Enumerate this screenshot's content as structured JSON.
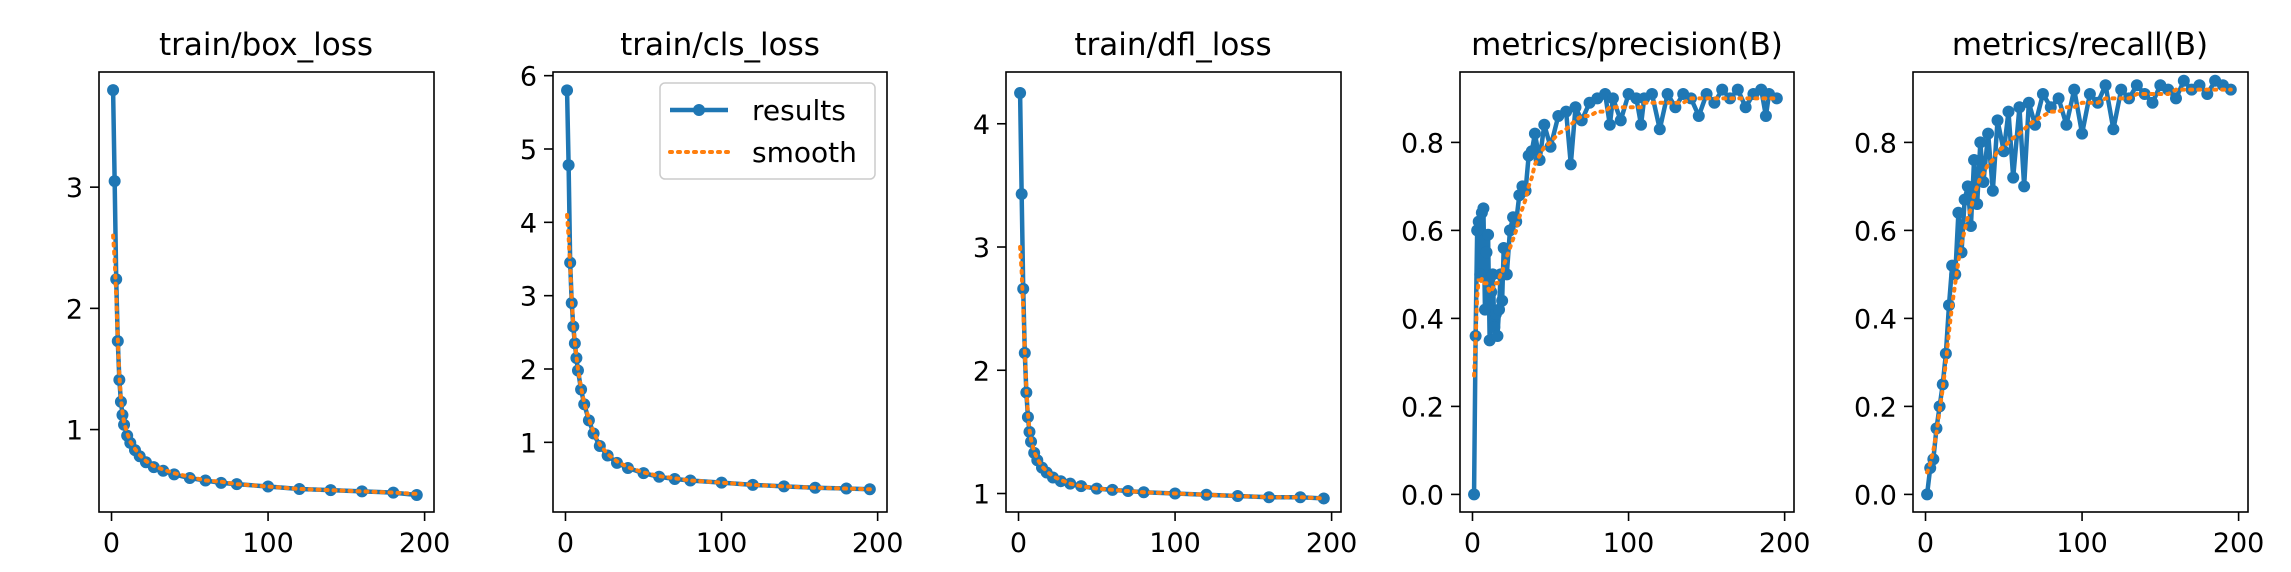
{
  "figure": {
    "titles": [
      "train/box_loss",
      "train/cls_loss",
      "train/dfl_loss",
      "metrics/precision(B)",
      "metrics/recall(B)"
    ]
  },
  "legend": {
    "results": "results",
    "smooth": "smooth"
  },
  "colors": {
    "results": "#1f77b4",
    "smooth": "#ff7f0e",
    "axes": "#000000",
    "background": "#ffffff"
  },
  "chart_data": [
    {
      "type": "line",
      "title": "train/box_loss",
      "xlabel": "",
      "ylabel": "",
      "xlim": [
        -8,
        206
      ],
      "ylim": [
        0.32,
        3.95
      ],
      "xticks": [
        0,
        100,
        200
      ],
      "yticks": [
        1,
        2,
        3
      ],
      "x": [
        1,
        2,
        3,
        4,
        5,
        6,
        7,
        8,
        10,
        12,
        15,
        18,
        22,
        27,
        33,
        40,
        50,
        60,
        70,
        80,
        100,
        120,
        140,
        160,
        180,
        195
      ],
      "series": [
        {
          "name": "results",
          "values": [
            3.8,
            3.05,
            2.24,
            1.73,
            1.41,
            1.23,
            1.12,
            1.04,
            0.95,
            0.89,
            0.83,
            0.78,
            0.73,
            0.69,
            0.66,
            0.63,
            0.6,
            0.58,
            0.56,
            0.55,
            0.53,
            0.51,
            0.5,
            0.49,
            0.48,
            0.46
          ]
        },
        {
          "name": "smooth",
          "values": [
            2.6,
            2.4,
            2.1,
            1.75,
            1.45,
            1.26,
            1.14,
            1.06,
            0.97,
            0.9,
            0.84,
            0.79,
            0.74,
            0.7,
            0.67,
            0.64,
            0.61,
            0.58,
            0.57,
            0.55,
            0.53,
            0.51,
            0.5,
            0.49,
            0.48,
            0.47
          ]
        }
      ]
    },
    {
      "type": "line",
      "title": "train/cls_loss",
      "xlabel": "",
      "ylabel": "",
      "xlim": [
        -8,
        206
      ],
      "ylim": [
        0.05,
        6.05
      ],
      "xticks": [
        0,
        100,
        200
      ],
      "yticks": [
        1,
        2,
        3,
        4,
        5,
        6
      ],
      "legend": "top-right",
      "x": [
        1,
        2,
        3,
        4,
        5,
        6,
        7,
        8,
        10,
        12,
        15,
        18,
        22,
        27,
        33,
        40,
        50,
        60,
        70,
        80,
        100,
        120,
        140,
        160,
        180,
        195
      ],
      "series": [
        {
          "name": "results",
          "values": [
            5.8,
            4.78,
            3.45,
            2.9,
            2.58,
            2.35,
            2.15,
            1.98,
            1.72,
            1.52,
            1.3,
            1.12,
            0.95,
            0.82,
            0.72,
            0.65,
            0.58,
            0.53,
            0.5,
            0.48,
            0.45,
            0.42,
            0.4,
            0.38,
            0.37,
            0.36
          ]
        },
        {
          "name": "smooth",
          "values": [
            4.1,
            3.8,
            3.4,
            2.95,
            2.6,
            2.37,
            2.17,
            2.0,
            1.74,
            1.54,
            1.32,
            1.14,
            0.97,
            0.84,
            0.74,
            0.66,
            0.59,
            0.54,
            0.51,
            0.48,
            0.45,
            0.42,
            0.4,
            0.38,
            0.37,
            0.36
          ]
        }
      ]
    },
    {
      "type": "line",
      "title": "train/dfl_loss",
      "xlabel": "",
      "ylabel": "",
      "xlim": [
        -8,
        206
      ],
      "ylim": [
        0.85,
        4.42
      ],
      "xticks": [
        0,
        100,
        200
      ],
      "yticks": [
        1,
        2,
        3,
        4
      ],
      "x": [
        1,
        2,
        3,
        4,
        5,
        6,
        7,
        8,
        10,
        12,
        15,
        18,
        22,
        27,
        33,
        40,
        50,
        60,
        70,
        80,
        100,
        120,
        140,
        160,
        180,
        195
      ],
      "series": [
        {
          "name": "results",
          "values": [
            4.25,
            3.43,
            2.66,
            2.14,
            1.82,
            1.62,
            1.5,
            1.42,
            1.33,
            1.27,
            1.21,
            1.17,
            1.13,
            1.1,
            1.08,
            1.06,
            1.04,
            1.03,
            1.02,
            1.01,
            1.0,
            0.99,
            0.98,
            0.97,
            0.97,
            0.96
          ]
        },
        {
          "name": "smooth",
          "values": [
            3.0,
            2.8,
            2.5,
            2.15,
            1.85,
            1.65,
            1.52,
            1.44,
            1.34,
            1.28,
            1.22,
            1.18,
            1.14,
            1.11,
            1.08,
            1.06,
            1.04,
            1.03,
            1.02,
            1.01,
            1.0,
            0.99,
            0.98,
            0.97,
            0.97,
            0.96
          ]
        }
      ]
    },
    {
      "type": "line",
      "title": "metrics/precision(B)",
      "xlabel": "",
      "ylabel": "",
      "xlim": [
        -8,
        206
      ],
      "ylim": [
        -0.04,
        0.96
      ],
      "xticks": [
        0,
        100,
        200
      ],
      "yticks": [
        0.0,
        0.2,
        0.4,
        0.6,
        0.8
      ],
      "x": [
        1,
        2,
        3,
        4,
        5,
        6,
        7,
        8,
        9,
        10,
        11,
        12,
        13,
        14,
        15,
        16,
        17,
        18,
        19,
        20,
        22,
        24,
        26,
        28,
        30,
        32,
        34,
        36,
        38,
        40,
        43,
        46,
        50,
        55,
        60,
        63,
        66,
        70,
        75,
        80,
        85,
        88,
        90,
        95,
        100,
        105,
        108,
        110,
        115,
        120,
        125,
        130,
        135,
        140,
        145,
        150,
        155,
        160,
        165,
        170,
        175,
        180,
        185,
        188,
        190,
        195
      ],
      "series": [
        {
          "name": "results",
          "values": [
            0.0,
            0.36,
            0.6,
            0.62,
            0.5,
            0.64,
            0.65,
            0.42,
            0.55,
            0.59,
            0.35,
            0.46,
            0.5,
            0.38,
            0.41,
            0.36,
            0.42,
            0.5,
            0.44,
            0.56,
            0.5,
            0.6,
            0.63,
            0.62,
            0.68,
            0.7,
            0.69,
            0.77,
            0.78,
            0.82,
            0.76,
            0.84,
            0.79,
            0.86,
            0.87,
            0.75,
            0.88,
            0.85,
            0.89,
            0.9,
            0.91,
            0.84,
            0.9,
            0.85,
            0.91,
            0.9,
            0.84,
            0.9,
            0.91,
            0.83,
            0.91,
            0.88,
            0.91,
            0.9,
            0.86,
            0.91,
            0.89,
            0.92,
            0.9,
            0.92,
            0.88,
            0.91,
            0.92,
            0.86,
            0.91,
            0.9
          ]
        },
        {
          "name": "smooth",
          "values": [
            0.27,
            0.35,
            0.45,
            0.49,
            0.48,
            0.49,
            0.48,
            0.48,
            0.48,
            0.47,
            0.46,
            0.46,
            0.47,
            0.47,
            0.48,
            0.48,
            0.49,
            0.5,
            0.5,
            0.52,
            0.54,
            0.56,
            0.58,
            0.6,
            0.63,
            0.65,
            0.67,
            0.7,
            0.72,
            0.75,
            0.77,
            0.79,
            0.8,
            0.82,
            0.83,
            0.84,
            0.85,
            0.86,
            0.86,
            0.87,
            0.87,
            0.88,
            0.88,
            0.88,
            0.88,
            0.88,
            0.88,
            0.89,
            0.89,
            0.89,
            0.89,
            0.89,
            0.89,
            0.9,
            0.9,
            0.9,
            0.9,
            0.9,
            0.9,
            0.9,
            0.9,
            0.9,
            0.9,
            0.9,
            0.9,
            0.9
          ]
        }
      ]
    },
    {
      "type": "line",
      "title": "metrics/recall(B)",
      "xlabel": "",
      "ylabel": "",
      "xlim": [
        -8,
        206
      ],
      "ylim": [
        -0.04,
        0.96
      ],
      "xticks": [
        0,
        100,
        200
      ],
      "yticks": [
        0.0,
        0.2,
        0.4,
        0.6,
        0.8
      ],
      "x": [
        1,
        3,
        5,
        7,
        9,
        11,
        13,
        15,
        17,
        19,
        21,
        23,
        25,
        27,
        29,
        31,
        33,
        35,
        37,
        40,
        43,
        46,
        50,
        53,
        56,
        60,
        63,
        66,
        70,
        75,
        80,
        85,
        90,
        95,
        100,
        105,
        110,
        115,
        120,
        125,
        130,
        135,
        140,
        145,
        150,
        155,
        160,
        165,
        170,
        175,
        180,
        185,
        190,
        195
      ],
      "series": [
        {
          "name": "results",
          "values": [
            0.0,
            0.06,
            0.08,
            0.15,
            0.2,
            0.25,
            0.32,
            0.43,
            0.52,
            0.5,
            0.64,
            0.55,
            0.67,
            0.7,
            0.61,
            0.76,
            0.66,
            0.8,
            0.71,
            0.82,
            0.69,
            0.85,
            0.78,
            0.87,
            0.72,
            0.88,
            0.7,
            0.89,
            0.84,
            0.91,
            0.88,
            0.9,
            0.84,
            0.92,
            0.82,
            0.91,
            0.89,
            0.93,
            0.83,
            0.92,
            0.9,
            0.93,
            0.91,
            0.89,
            0.93,
            0.92,
            0.9,
            0.94,
            0.92,
            0.93,
            0.91,
            0.94,
            0.93,
            0.92
          ]
        },
        {
          "name": "smooth",
          "values": [
            0.05,
            0.07,
            0.1,
            0.14,
            0.19,
            0.24,
            0.3,
            0.37,
            0.43,
            0.48,
            0.53,
            0.57,
            0.6,
            0.63,
            0.65,
            0.68,
            0.7,
            0.72,
            0.73,
            0.75,
            0.76,
            0.78,
            0.79,
            0.8,
            0.81,
            0.82,
            0.83,
            0.84,
            0.85,
            0.86,
            0.87,
            0.87,
            0.88,
            0.88,
            0.89,
            0.89,
            0.89,
            0.9,
            0.9,
            0.9,
            0.9,
            0.91,
            0.91,
            0.91,
            0.91,
            0.91,
            0.92,
            0.92,
            0.92,
            0.92,
            0.92,
            0.92,
            0.92,
            0.92
          ]
        }
      ]
    }
  ]
}
